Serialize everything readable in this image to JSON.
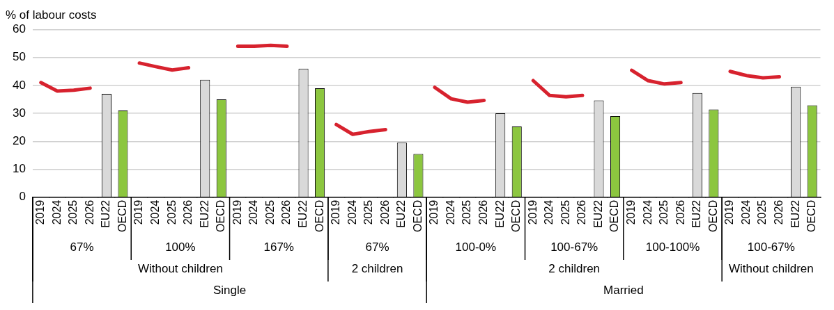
{
  "chart_data": {
    "type": "bar",
    "ylabel": "% of labour costs",
    "categories": [
      "2019",
      "2024",
      "2025",
      "2026",
      "EU22",
      "OECD",
      "2019",
      "2024",
      "2025",
      "2026",
      "EU22",
      "OECD",
      "2019",
      "2024",
      "2025",
      "2026",
      "EU22",
      "OECD",
      "2019",
      "2024",
      "2025",
      "2026",
      "EU22",
      "OECD",
      "2019",
      "2024",
      "2025",
      "2026",
      "EU22",
      "OECD",
      "2019",
      "2024",
      "2025",
      "2026",
      "EU22",
      "OECD",
      "2019",
      "2024",
      "2025",
      "2026",
      "EU22",
      "OECD",
      "2019",
      "2024",
      "2025",
      "2026",
      "EU22",
      "OECD"
    ],
    "series": [
      {
        "type": "line",
        "color": "#d7222e",
        "values": [
          41,
          38,
          38.3,
          39,
          null,
          null,
          48,
          46.7,
          45.5,
          46.3,
          null,
          null,
          54,
          54,
          54.3,
          54,
          null,
          null,
          26,
          22.5,
          23.5,
          24.2,
          null,
          null,
          39.3,
          35.2,
          34,
          34.6,
          null,
          null,
          41.7,
          36.4,
          35.9,
          36.4,
          null,
          null,
          45.4,
          41.7,
          40.5,
          41,
          null,
          null,
          45,
          43.5,
          42.7,
          43.1,
          null,
          null
        ]
      },
      {
        "color": "#d9d9d9",
        "values": [
          null,
          null,
          null,
          null,
          37,
          null,
          null,
          null,
          null,
          null,
          42,
          null,
          null,
          null,
          null,
          null,
          46,
          null,
          null,
          null,
          null,
          null,
          19.5,
          null,
          null,
          null,
          null,
          null,
          30,
          null,
          null,
          null,
          null,
          null,
          34.6,
          null,
          null,
          null,
          null,
          null,
          37.3,
          null,
          null,
          null,
          null,
          null,
          39.5,
          null
        ]
      },
      {
        "color": "#8cc63f",
        "values": [
          null,
          null,
          null,
          null,
          null,
          31,
          null,
          null,
          null,
          null,
          null,
          35,
          null,
          null,
          null,
          null,
          null,
          39,
          null,
          null,
          null,
          null,
          null,
          15.5,
          null,
          null,
          null,
          null,
          null,
          25.3,
          null,
          null,
          null,
          null,
          null,
          29,
          null,
          null,
          null,
          null,
          null,
          31.4,
          null,
          null,
          null,
          null,
          null,
          32.9
        ]
      }
    ],
    "annotations": [
      "67%",
      "100%",
      "167%",
      "67%",
      "100-0%",
      "100-67%",
      "100-100%",
      "100-67%",
      "Without children",
      "2 children",
      "2 children",
      "Without children",
      "Single",
      "Married"
    ],
    "ylim": [
      0,
      60
    ],
    "yticks": [
      0,
      10,
      20,
      30,
      40,
      50,
      60
    ],
    "grid": "y",
    "legend": false,
    "marker": "none",
    "line_style": "solid"
  }
}
